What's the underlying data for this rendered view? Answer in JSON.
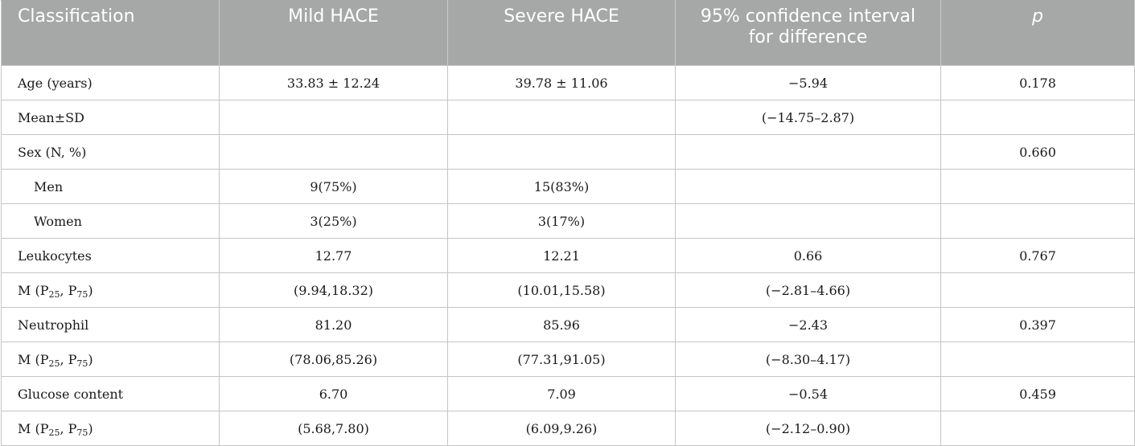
{
  "table": {
    "headers": {
      "classification": "Classification",
      "mild": "Mild HACE",
      "severe": "Severe HACE",
      "ci": "95% confidence interval for difference",
      "p": "p"
    },
    "rows": [
      {
        "label": "Age (years)",
        "mild": "33.83 ± 12.24",
        "severe": "39.78 ± 11.06",
        "ci": "−5.94",
        "p": "0.178"
      },
      {
        "label": "Mean±SD",
        "mild": "",
        "severe": "",
        "ci": "(−14.75–2.87)",
        "p": ""
      },
      {
        "label": "Sex (N, %)",
        "mild": "",
        "severe": "",
        "ci": "",
        "p": "0.660"
      },
      {
        "label": "Men",
        "mild": "9(75%)",
        "severe": "15(83%)",
        "ci": "",
        "p": ""
      },
      {
        "label": "Women",
        "mild": "3(25%)",
        "severe": "3(17%)",
        "ci": "",
        "p": ""
      },
      {
        "label": "Leukocytes",
        "mild": "12.77",
        "severe": "12.21",
        "ci": "0.66",
        "p": "0.767"
      },
      {
        "label_main": "M (P",
        "label_sub1": "25",
        "label_mid": ", P",
        "label_sub2": "75",
        "label_end": ")",
        "mild": "(9.94,18.32)",
        "severe": "(10.01,15.58)",
        "ci": "(−2.81–4.66)",
        "p": ""
      },
      {
        "label": "Neutrophil",
        "mild": "81.20",
        "severe": "85.96",
        "ci": "−2.43",
        "p": "0.397"
      },
      {
        "label_main": "M (P",
        "label_sub1": "25",
        "label_mid": ", P",
        "label_sub2": "75",
        "label_end": ")",
        "mild": "(78.06,85.26)",
        "severe": "(77.31,91.05)",
        "ci": "(−8.30–4.17)",
        "p": ""
      },
      {
        "label": "Glucose content",
        "mild": "6.70",
        "severe": "7.09",
        "ci": "−0.54",
        "p": "0.459"
      },
      {
        "label_main": "M (P",
        "label_sub1": "25",
        "label_mid": ", P",
        "label_sub2": "75",
        "label_end": ")",
        "mild": "(5.68,7.80)",
        "severe": "(6.09,9.26)",
        "ci": "(−2.12–0.90)",
        "p": ""
      }
    ]
  }
}
